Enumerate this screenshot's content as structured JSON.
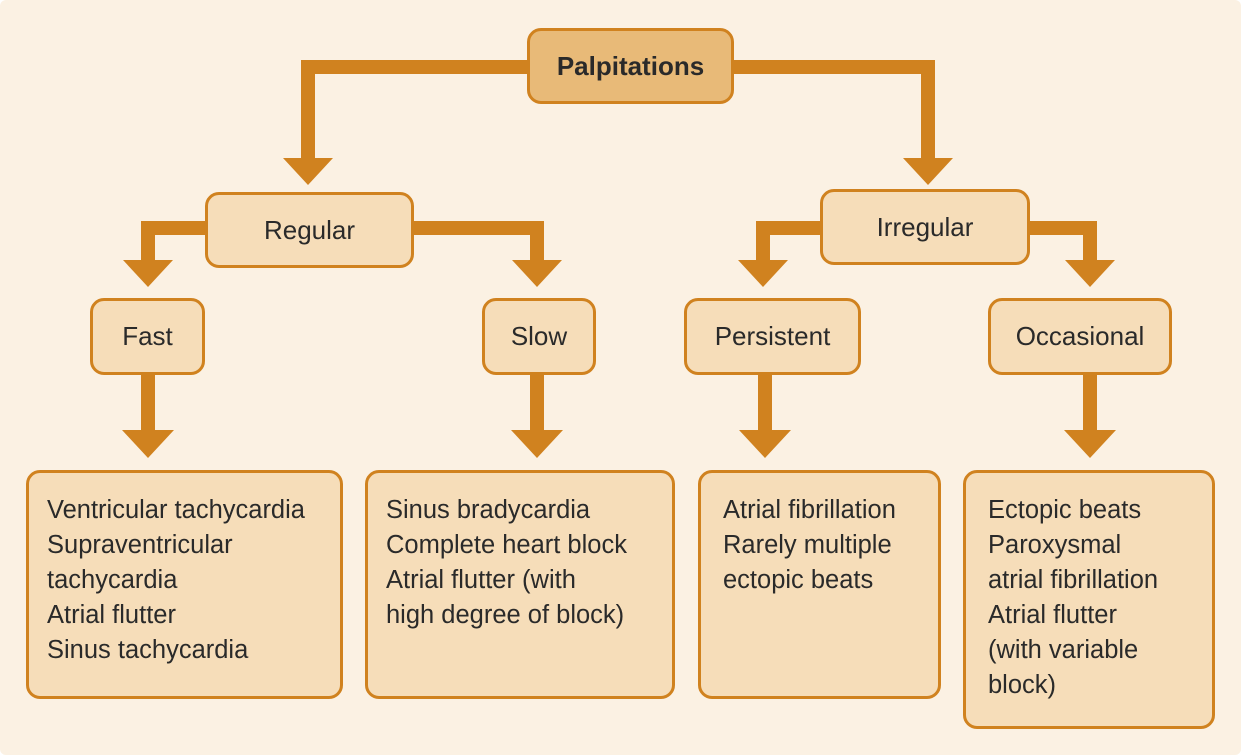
{
  "root": {
    "label": "Palpitations"
  },
  "branches": {
    "regular": {
      "label": "Regular"
    },
    "irregular": {
      "label": "Irregular"
    }
  },
  "subbranches": {
    "fast": {
      "label": "Fast"
    },
    "slow": {
      "label": "Slow"
    },
    "persistent": {
      "label": "Persistent"
    },
    "occasional": {
      "label": "Occasional"
    }
  },
  "outcomes": {
    "fast": [
      "Ventricular tachycardia",
      "Supraventricular",
      "tachycardia",
      "Atrial flutter",
      "Sinus tachycardia"
    ],
    "slow": [
      "Sinus bradycardia",
      "Complete heart block",
      "Atrial flutter (with",
      "high degree of block)"
    ],
    "persistent": [
      "Atrial fibrillation",
      "Rarely multiple",
      "ectopic beats"
    ],
    "occasional": [
      "Ectopic beats",
      "Paroxysmal",
      "atrial fibrillation",
      "Atrial flutter",
      "(with variable",
      "block)"
    ]
  },
  "colors": {
    "background": "#fbf1e3",
    "accent": "#d0821f",
    "node_fill": "#f6ddb9",
    "root_fill": "#e8ba78",
    "text": "#2a2a2a"
  }
}
